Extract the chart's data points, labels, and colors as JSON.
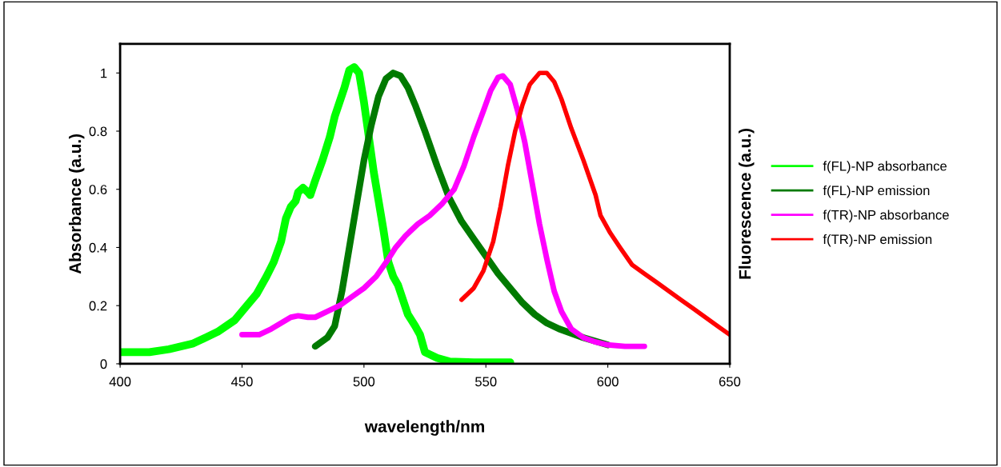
{
  "chart_data": {
    "type": "line",
    "xlabel": "wavelength/nm",
    "ylabel": "Absorbance (a.u.)",
    "y2label": "Fluorescence (a.u.)",
    "xlim": [
      400,
      650
    ],
    "xticks": [
      400,
      450,
      500,
      550,
      600,
      650
    ],
    "ylim": [
      0,
      1.1
    ],
    "yticks": [
      0,
      0.2,
      0.4,
      0.6,
      0.8,
      1
    ],
    "grid": false,
    "legend": "right",
    "marker": "none",
    "line_style": "solid",
    "series": [
      {
        "name": "f(FL)-NP absorbance",
        "color": "#00ff00",
        "x": [
          400,
          412,
          420,
          430,
          440,
          447,
          452,
          456,
          460,
          463,
          466,
          468,
          470,
          472,
          473,
          475,
          477,
          478,
          480,
          483,
          486,
          488,
          490,
          492,
          494,
          496,
          498,
          500,
          502,
          504,
          506,
          508,
          510,
          512,
          514,
          516,
          518,
          521,
          523,
          525,
          530,
          535,
          545,
          560
        ],
        "values": [
          0.04,
          0.04,
          0.05,
          0.07,
          0.11,
          0.15,
          0.2,
          0.24,
          0.3,
          0.35,
          0.42,
          0.5,
          0.54,
          0.56,
          0.59,
          0.605,
          0.59,
          0.58,
          0.63,
          0.7,
          0.78,
          0.85,
          0.9,
          0.95,
          1.01,
          1.02,
          1.0,
          0.9,
          0.78,
          0.66,
          0.56,
          0.46,
          0.35,
          0.3,
          0.27,
          0.22,
          0.17,
          0.13,
          0.1,
          0.04,
          0.02,
          0.008,
          0.005,
          0.005
        ]
      },
      {
        "name": "f(FL)-NP emission",
        "color": "#007a00",
        "x": [
          480,
          485,
          488,
          491,
          494,
          497,
          500,
          503,
          506,
          509,
          512,
          515,
          518,
          521,
          525,
          530,
          535,
          540,
          545,
          550,
          555,
          560,
          565,
          570,
          575,
          580,
          590,
          600
        ],
        "values": [
          0.06,
          0.09,
          0.13,
          0.25,
          0.4,
          0.55,
          0.7,
          0.82,
          0.92,
          0.98,
          1.0,
          0.99,
          0.95,
          0.89,
          0.8,
          0.68,
          0.57,
          0.49,
          0.43,
          0.37,
          0.31,
          0.26,
          0.21,
          0.17,
          0.14,
          0.12,
          0.09,
          0.065
        ]
      },
      {
        "name": "f(TR)-NP absorbance",
        "color": "#ff00ff",
        "x": [
          450,
          457,
          462,
          466,
          470,
          473,
          477,
          480,
          485,
          490,
          495,
          500,
          505,
          510,
          513,
          517,
          522,
          527,
          532,
          537,
          541,
          545,
          549,
          552,
          555,
          557,
          560,
          563,
          566,
          569,
          572,
          575,
          578,
          581,
          585,
          590,
          595,
          600,
          607,
          615
        ],
        "values": [
          0.1,
          0.1,
          0.12,
          0.14,
          0.16,
          0.165,
          0.16,
          0.16,
          0.18,
          0.2,
          0.23,
          0.26,
          0.3,
          0.36,
          0.4,
          0.44,
          0.48,
          0.51,
          0.55,
          0.6,
          0.68,
          0.78,
          0.87,
          0.94,
          0.985,
          0.99,
          0.96,
          0.87,
          0.76,
          0.62,
          0.48,
          0.36,
          0.25,
          0.18,
          0.12,
          0.09,
          0.075,
          0.065,
          0.06,
          0.06
        ]
      },
      {
        "name": "f(TR)-NP emission",
        "color": "#ff0000",
        "x": [
          540,
          545,
          549,
          553,
          556,
          559,
          562,
          565,
          568,
          572,
          575,
          578,
          581,
          585,
          590,
          595,
          597,
          601,
          605,
          610,
          615,
          620,
          625,
          630,
          635,
          640,
          645,
          650
        ],
        "values": [
          0.22,
          0.26,
          0.32,
          0.42,
          0.54,
          0.68,
          0.8,
          0.89,
          0.96,
          1.0,
          1.0,
          0.97,
          0.91,
          0.81,
          0.7,
          0.58,
          0.51,
          0.45,
          0.4,
          0.34,
          0.31,
          0.28,
          0.25,
          0.22,
          0.19,
          0.16,
          0.13,
          0.1
        ]
      }
    ]
  }
}
